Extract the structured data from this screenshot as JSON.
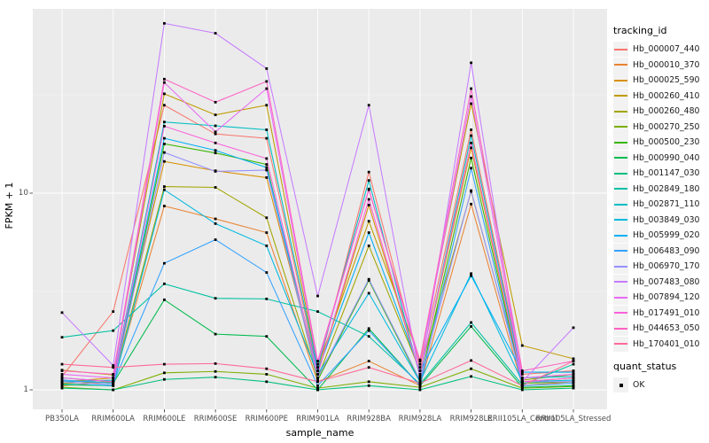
{
  "figure": {
    "y_axis_title": "FPKM + 1",
    "x_axis_title": "sample_name",
    "y_ticks": [
      "10",
      "1"
    ],
    "legend": {
      "tracking_title": "tracking_id",
      "quant_title": "quant_status",
      "quant_ok_label": "OK"
    },
    "colors": {
      "panel_bg": "#EBEBEB",
      "grid": "#FFFFFF",
      "tick_text": "#4D4D4D",
      "tick_mark": "#333333",
      "marker": "#000000",
      "legend_key_bg": "#F2F2F2"
    }
  },
  "chart_data": {
    "type": "line",
    "title": "",
    "xlabel": "sample_name",
    "ylabel": "FPKM + 1",
    "y_scale": "log10",
    "ylim": [
      0.8,
      90
    ],
    "y_ticks": [
      1,
      10
    ],
    "grid": true,
    "legend_position": "right",
    "marker": "small black square (quant_status = OK)",
    "quant_status": "OK",
    "categories": [
      "PB350LA",
      "RRIM600LA",
      "RRIM600LE",
      "RRIM600SE",
      "RRIM600PE",
      "RRIM901LA",
      "RRIM928BA",
      "RRIM928LA",
      "RRIM928LE",
      "RRII105LA_Control",
      "RRII105LA_Stressed"
    ],
    "series": [
      {
        "name": "Hb_000007_440",
        "color": "#F8766D",
        "values": [
          1.17,
          2.5,
          28,
          20,
          19,
          1.25,
          12.8,
          1.3,
          21,
          1.2,
          1.25
        ]
      },
      {
        "name": "Hb_000010_370",
        "color": "#EA8331",
        "values": [
          1.05,
          1.1,
          8.6,
          7.4,
          6.3,
          1.1,
          1.4,
          1.05,
          8.8,
          1.05,
          1.1
        ]
      },
      {
        "name": "Hb_000025_590",
        "color": "#D89000",
        "values": [
          1.1,
          1.15,
          14.5,
          13,
          12,
          1.2,
          8.7,
          1.2,
          17,
          1.1,
          1.15
        ]
      },
      {
        "name": "Hb_000260_410",
        "color": "#C09B00",
        "values": [
          1.26,
          1.19,
          32,
          25,
          28,
          1.3,
          7.2,
          1.42,
          28.5,
          1.68,
          1.44
        ]
      },
      {
        "name": "Hb_000260_480",
        "color": "#A3A500",
        "values": [
          1.08,
          1.1,
          10.8,
          10.7,
          7.5,
          1.15,
          5.4,
          1.25,
          10.2,
          1.12,
          1.2
        ]
      },
      {
        "name": "Hb_000270_250",
        "color": "#7CAE00",
        "values": [
          1.03,
          1.0,
          1.22,
          1.24,
          1.2,
          1.02,
          1.1,
          1.03,
          1.28,
          1.02,
          1.04
        ]
      },
      {
        "name": "Hb_000500_230",
        "color": "#39B600",
        "values": [
          1.06,
          1.05,
          17.8,
          16,
          14,
          1.12,
          3.6,
          1.1,
          15.1,
          1.08,
          1.1
        ]
      },
      {
        "name": "Hb_000990_040",
        "color": "#00BB4E",
        "values": [
          1.12,
          1.08,
          2.87,
          1.92,
          1.87,
          1.0,
          2.05,
          1.05,
          2.1,
          1.03,
          1.05
        ]
      },
      {
        "name": "Hb_001147_030",
        "color": "#00BF7D",
        "values": [
          1.02,
          1.0,
          1.13,
          1.16,
          1.1,
          1.0,
          1.05,
          1.0,
          1.17,
          1.0,
          1.02
        ]
      },
      {
        "name": "Hb_002849_180",
        "color": "#00C1A3",
        "values": [
          1.85,
          2.0,
          3.46,
          2.92,
          2.9,
          2.5,
          1.87,
          1.07,
          2.2,
          1.06,
          1.35
        ]
      },
      {
        "name": "Hb_002871_110",
        "color": "#00BFC4",
        "values": [
          1.1,
          1.12,
          23,
          22,
          21,
          1.3,
          11.6,
          1.17,
          19.6,
          1.15,
          1.17
        ]
      },
      {
        "name": "Hb_003849_030",
        "color": "#00BAE0",
        "values": [
          1.07,
          1.05,
          10.4,
          7.0,
          5.4,
          1.2,
          3.1,
          1.1,
          3.9,
          1.1,
          1.12
        ]
      },
      {
        "name": "Hb_005999_020",
        "color": "#00B0F6",
        "values": [
          1.15,
          1.1,
          19,
          16.5,
          13.5,
          1.25,
          6.3,
          1.25,
          3.8,
          1.23,
          1.23
        ]
      },
      {
        "name": "Hb_006483_090",
        "color": "#35A2FF",
        "values": [
          1.12,
          1.08,
          4.4,
          5.8,
          3.95,
          1.05,
          2.0,
          1.05,
          13.4,
          1.05,
          1.08
        ]
      },
      {
        "name": "Hb_006970_170",
        "color": "#9590FF",
        "values": [
          1.1,
          1.06,
          16.1,
          12.9,
          13.1,
          1.15,
          3.65,
          1.12,
          10.3,
          1.1,
          1.1
        ]
      },
      {
        "name": "Hb_007483_080",
        "color": "#C77CFF",
        "values": [
          2.47,
          1.33,
          73,
          65,
          43,
          3.0,
          28,
          1.15,
          46,
          1.1,
          2.07
        ]
      },
      {
        "name": "Hb_007894_120",
        "color": "#E76BF3",
        "values": [
          1.2,
          1.15,
          36.5,
          20.5,
          34,
          1.35,
          10.5,
          1.35,
          31,
          1.15,
          1.2
        ]
      },
      {
        "name": "Hb_017491_010",
        "color": "#FA62DB",
        "values": [
          1.15,
          1.1,
          21.9,
          18,
          15,
          1.2,
          9.3,
          1.2,
          18,
          1.1,
          1.15
        ]
      },
      {
        "name": "Hb_044653_050",
        "color": "#FF61C3",
        "values": [
          1.25,
          1.2,
          38,
          29,
          37,
          1.4,
          10.4,
          1.4,
          34,
          1.25,
          1.4
        ]
      },
      {
        "name": "Hb_170401_010",
        "color": "#FF6A98",
        "values": [
          1.35,
          1.3,
          1.35,
          1.36,
          1.28,
          1.1,
          1.3,
          1.08,
          1.41,
          1.05,
          1.4
        ]
      }
    ]
  }
}
